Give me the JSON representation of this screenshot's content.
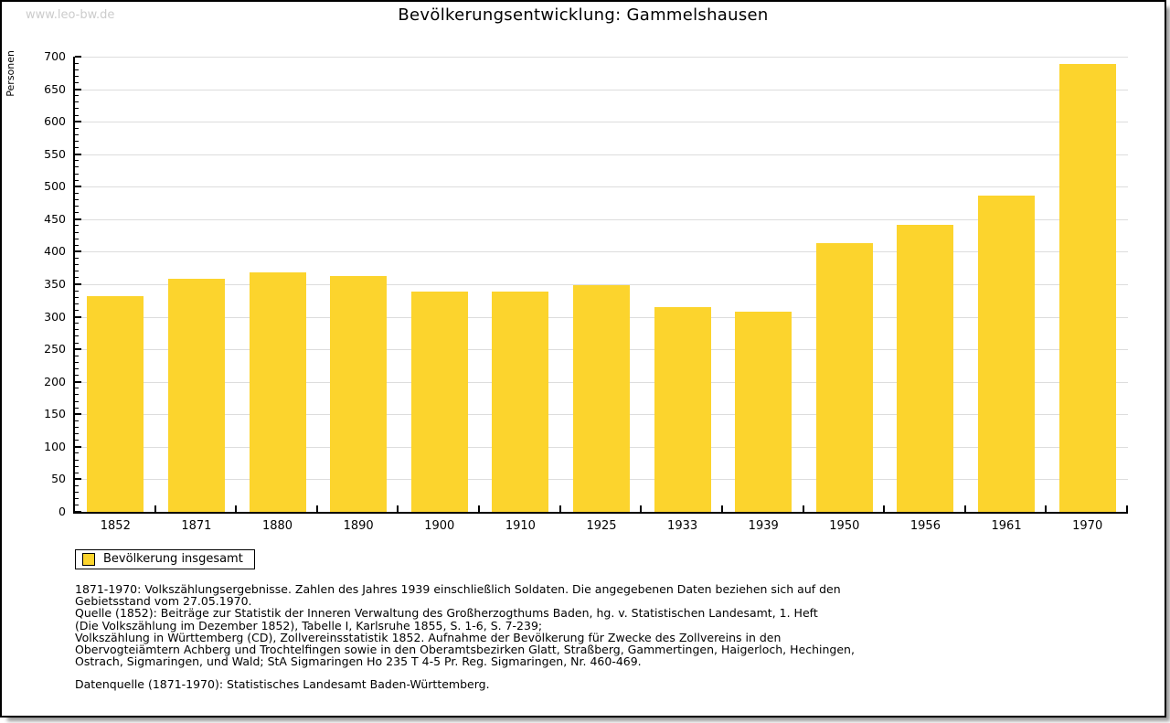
{
  "watermark": "www.leo-bw.de",
  "title": "Bevölkerungsentwicklung: Gammelshausen",
  "chart_data": {
    "type": "bar",
    "title": "Bevölkerungsentwicklung: Gammelshausen",
    "xlabel": "",
    "ylabel": "Personen",
    "categories": [
      "1852",
      "1871",
      "1880",
      "1890",
      "1900",
      "1910",
      "1925",
      "1933",
      "1939",
      "1950",
      "1956",
      "1961",
      "1970"
    ],
    "values": [
      332,
      358,
      368,
      362,
      339,
      339,
      348,
      315,
      308,
      413,
      442,
      486,
      689
    ],
    "ylim": [
      0,
      700
    ],
    "ytick_step": 50,
    "minor_tick_step": 10,
    "grid": true,
    "legend_entries": [
      "Bevölkerung insgesamt"
    ],
    "legend_position": "bottom-left",
    "bar_color": "#fcd42d"
  },
  "legend": {
    "label": "Bevölkerung insgesamt"
  },
  "footnotes": [
    "1871-1970: Volkszählungsergebnisse. Zahlen des Jahres 1939 einschließlich Soldaten. Die angegebenen Daten beziehen sich auf den",
    "Gebietsstand vom 27.05.1970.",
    "Quelle (1852): Beiträge zur Statistik der Inneren Verwaltung des Großherzogthums Baden, hg. v. Statistischen Landesamt, 1. Heft",
    "(Die Volkszählung im Dezember 1852), Tabelle I, Karlsruhe 1855, S. 1-6, S. 7-239;",
    "Volkszählung in Württemberg (CD), Zollvereinsstatistik 1852. Aufnahme der Bevölkerung für Zwecke des Zollvereins in den",
    "Obervogteiämtern Achberg und Trochtelfingen sowie in den Oberamtsbezirken Glatt, Straßberg, Gammertingen, Haigerloch, Hechingen,",
    "Ostrach, Sigmaringen, und Wald; StA Sigmaringen Ho 235 T 4-5 Pr. Reg. Sigmaringen, Nr. 460-469."
  ],
  "datasource": "Datenquelle (1871-1970): Statistisches Landesamt Baden-Württemberg.",
  "colors": {
    "bar": "#fcd42d",
    "grid": "#dddddd",
    "axis": "#000000",
    "watermark": "#cccccc",
    "shadow": "#999999",
    "background": "#ffffff"
  }
}
